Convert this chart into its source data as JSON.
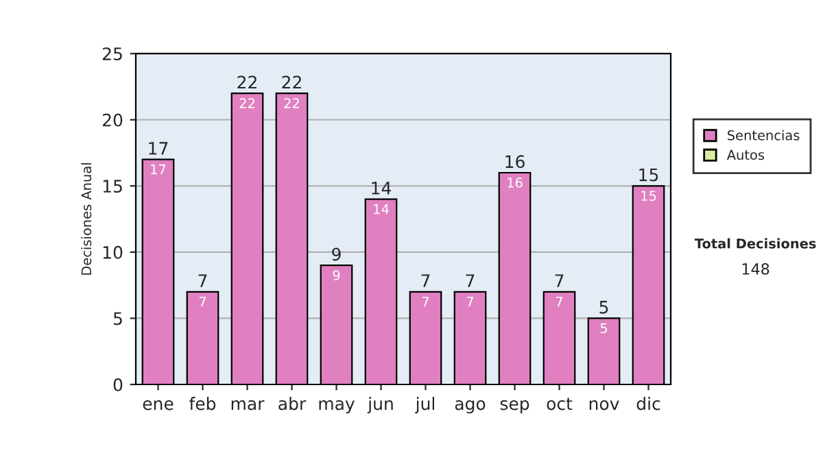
{
  "chart_data": {
    "type": "bar",
    "stacked": true,
    "ylabel": "Decisiones Anual",
    "categories": [
      "ene",
      "feb",
      "mar",
      "abr",
      "may",
      "jun",
      "jul",
      "ago",
      "sep",
      "oct",
      "nov",
      "dic"
    ],
    "series": [
      {
        "name": "Sentencias",
        "color": "#e080c0",
        "values": [
          17,
          7,
          22,
          22,
          9,
          14,
          7,
          7,
          16,
          7,
          5,
          15
        ],
        "value_labels": [
          "17",
          "7",
          "22",
          "22",
          "9",
          "14",
          "7",
          "7",
          "16",
          "7",
          "5",
          "15"
        ]
      },
      {
        "name": "Autos",
        "color": "#d8eaa0",
        "values": [
          null,
          null,
          null,
          null,
          null,
          null,
          null,
          null,
          null,
          null,
          null,
          null
        ]
      }
    ],
    "totals": [
      "17",
      "7",
      "22",
      "22",
      "9",
      "14",
      "7",
      "7",
      "16",
      "7",
      "5",
      "15"
    ],
    "ylim": [
      0,
      25
    ],
    "yticks": [
      0,
      5,
      10,
      15,
      20,
      25
    ],
    "grid": "y",
    "legend": "right",
    "annotations": [
      "Total Decisiones",
      "148"
    ]
  }
}
